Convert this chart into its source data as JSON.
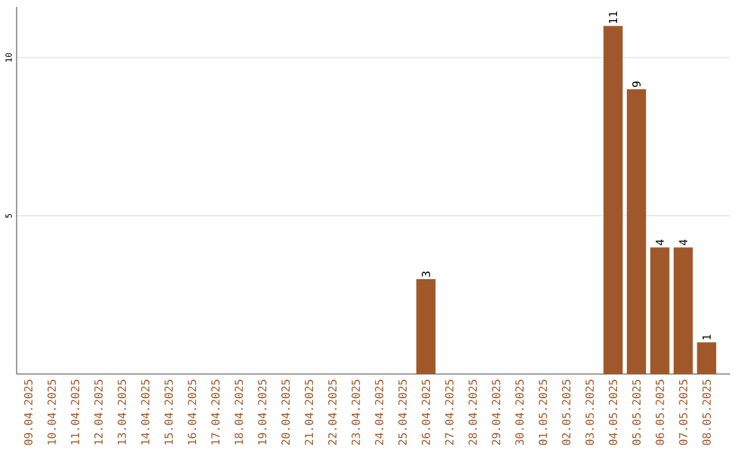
{
  "chart_data": {
    "type": "bar",
    "categories": [
      "09.04.2025",
      "10.04.2025",
      "11.04.2025",
      "12.04.2025",
      "13.04.2025",
      "14.04.2025",
      "15.04.2025",
      "16.04.2025",
      "17.04.2025",
      "18.04.2025",
      "19.04.2025",
      "20.04.2025",
      "21.04.2025",
      "22.04.2025",
      "23.04.2025",
      "24.04.2025",
      "25.04.2025",
      "26.04.2025",
      "27.04.2025",
      "28.04.2025",
      "29.04.2025",
      "30.04.2025",
      "01.05.2025",
      "02.05.2025",
      "03.05.2025",
      "04.05.2025",
      "05.05.2025",
      "06.05.2025",
      "07.05.2025",
      "08.05.2025"
    ],
    "values": [
      0,
      0,
      0,
      0,
      0,
      0,
      0,
      0,
      0,
      0,
      0,
      0,
      0,
      0,
      0,
      0,
      0,
      3,
      0,
      0,
      0,
      0,
      0,
      0,
      0,
      11,
      9,
      4,
      4,
      1
    ],
    "value_labels": [
      null,
      null,
      null,
      null,
      null,
      null,
      null,
      null,
      null,
      null,
      null,
      null,
      null,
      null,
      null,
      null,
      null,
      "3",
      null,
      null,
      null,
      null,
      null,
      null,
      null,
      "11",
      "9",
      "4",
      "4",
      "1"
    ],
    "color": "#a0582a",
    "ylim": [
      0,
      11.6
    ],
    "yticks": [
      5,
      10
    ],
    "grid": "y"
  }
}
